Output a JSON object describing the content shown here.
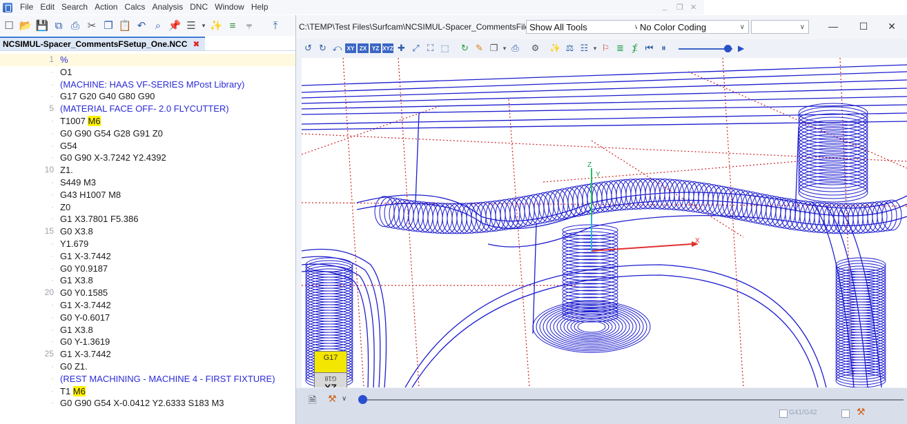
{
  "menubar": {
    "items": [
      "File",
      "Edit",
      "Search",
      "Action",
      "Calcs",
      "Analysis",
      "DNC",
      "Window",
      "Help"
    ]
  },
  "editor": {
    "tab_label": "NCSIMUL-Spacer_CommentsFSetup_One.NCC",
    "lines": [
      {
        "num": "1",
        "text": "%",
        "type": "percent"
      },
      {
        "num": "·",
        "text": "O1",
        "type": "code"
      },
      {
        "num": "·",
        "text": "(MACHINE: HAAS VF-SERIES MPost Library)",
        "type": "comment"
      },
      {
        "num": "·",
        "text": "G17 G20 G40 G80 G90",
        "type": "code"
      },
      {
        "num": "5",
        "text": "(MATERIAL FACE OFF- 2.0 FLYCUTTER)",
        "type": "comment"
      },
      {
        "num": "·",
        "text": "T1007 ",
        "hl": "M6",
        "type": "code"
      },
      {
        "num": "·",
        "text": "G0 G90 G54 G28 G91 Z0",
        "type": "code"
      },
      {
        "num": "·",
        "text": "G54",
        "type": "code"
      },
      {
        "num": "·",
        "text": "G0 G90 X-3.7242 Y2.4392",
        "type": "code"
      },
      {
        "num": "10",
        "text": "Z1.",
        "type": "code"
      },
      {
        "num": "·",
        "text": "S449 M3",
        "type": "code"
      },
      {
        "num": "·",
        "text": "G43 H1007 M8",
        "type": "code"
      },
      {
        "num": "·",
        "text": "Z0",
        "type": "code"
      },
      {
        "num": "·",
        "text": "G1 X3.7801 F5.386",
        "type": "code"
      },
      {
        "num": "15",
        "text": "G0 X3.8",
        "type": "code"
      },
      {
        "num": "·",
        "text": "Y1.679",
        "type": "code"
      },
      {
        "num": "·",
        "text": "G1 X-3.7442",
        "type": "code"
      },
      {
        "num": "·",
        "text": "G0 Y0.9187",
        "type": "code"
      },
      {
        "num": "·",
        "text": "G1 X3.8",
        "type": "code"
      },
      {
        "num": "20",
        "text": "G0 Y0.1585",
        "type": "code"
      },
      {
        "num": "·",
        "text": "G1 X-3.7442",
        "type": "code"
      },
      {
        "num": "·",
        "text": "G0 Y-0.6017",
        "type": "code"
      },
      {
        "num": "·",
        "text": "G1 X3.8",
        "type": "code"
      },
      {
        "num": "·",
        "text": "G0 Y-1.3619",
        "type": "code"
      },
      {
        "num": "25",
        "text": "G1 X-3.7442",
        "type": "code"
      },
      {
        "num": "·",
        "text": "G0 Z1.",
        "type": "code"
      },
      {
        "num": "·",
        "text": "(REST MACHINING - MACHINE 4 - FIRST FIXTURE)",
        "type": "comment"
      },
      {
        "num": "·",
        "text": "T1 ",
        "hl": "M6",
        "type": "code"
      },
      {
        "num": "·",
        "text": "G0 G90 G54 X-0.0412 Y2.6333 S183 M3",
        "type": "code"
      }
    ]
  },
  "backplot": {
    "path": "C:\\TEMP\\Test Files\\Surfcam\\NCSIMUL-Spacer_CommentsFile.NC",
    "tool_filter": "Show All Tools",
    "color_coding": "No Color Coding",
    "third_select": "",
    "viewcube_top": "G17",
    "viewcube_bottom_small": "G18",
    "viewcube_bottom_big": "XZ",
    "axis_x": "X",
    "axis_y": "Y",
    "axis_z": "Z",
    "g41_label": "G41/G42",
    "view_buttons": [
      "XY",
      "ZX",
      "YZ",
      "XYZ"
    ],
    "timeline_progress": 0.0
  },
  "colors": {
    "toolpath": "#1c1ccf",
    "rapid": "#cc2020",
    "highlight": "#fff200",
    "comment": "#2b2bd6"
  }
}
